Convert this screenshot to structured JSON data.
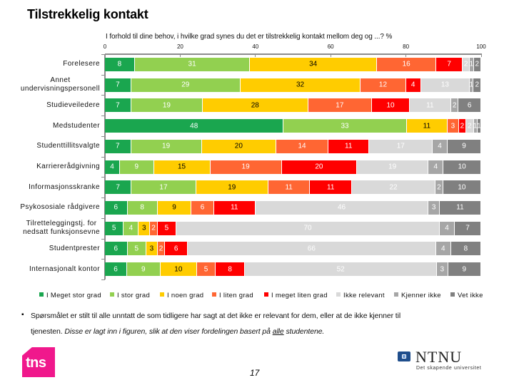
{
  "page": {
    "title": "Tilstrekkelig kontakt",
    "page_number": "17"
  },
  "footnote": {
    "bullet": "▪",
    "line1": "Spørsmålet er stilt til alle unntatt de som tidligere har sagt at det ikke er relevant for dem, eller at de ikke kjenner til",
    "line2_plain": "tjenesten. ",
    "line2_italic": "Disse er lagt inn i figuren, slik at den viser fordelingen basert på ",
    "line2_underlined": "alle",
    "line2_end": " studentene."
  },
  "logos": {
    "tns_text": "tns",
    "ntnu_name": "NTNU",
    "ntnu_tagline": "Det skapende universitet"
  },
  "chart_data": {
    "type": "bar",
    "orientation": "horizontal",
    "stacked": true,
    "title": "Tilstrekkelig kontakt",
    "subtitle": "I forhold til dine behov, i hvilke grad synes du det er tilstrekkelig kontakt mellom deg og ...? %",
    "xlabel": "",
    "ylabel": "",
    "xlim": [
      0,
      100
    ],
    "x_ticks": [
      "0",
      "20",
      "40",
      "60",
      "80",
      "100"
    ],
    "grid": false,
    "legend_position": "bottom",
    "categories": [
      "Forelesere",
      "Annet\nundervisningspersonell",
      "Studieveiledere",
      "Medstudenter",
      "Studenttillitsvalgte",
      "Karriererådgivning",
      "Informasjonsskranke",
      "Psykososiale rådgivere",
      "Tilretteleggingstj. for\nnedsatt funksjonsevne",
      "Studentprester",
      "Internasjonalt kontor"
    ],
    "series": [
      {
        "name": "I Meget stor grad",
        "color": "#1aa64f",
        "label_color": "#ffffff",
        "values": [
          8,
          7,
          7,
          48,
          7,
          4,
          7,
          6,
          5,
          6,
          6
        ]
      },
      {
        "name": "I stor grad",
        "color": "#92d050",
        "label_color": "#ffffff",
        "values": [
          31,
          29,
          19,
          33,
          19,
          9,
          17,
          8,
          4,
          5,
          9
        ]
      },
      {
        "name": "I noen grad",
        "color": "#ffcc00",
        "label_color": "#000000",
        "values": [
          34,
          32,
          28,
          11,
          20,
          15,
          19,
          9,
          3,
          3,
          10
        ]
      },
      {
        "name": "I liten grad",
        "color": "#ff6633",
        "label_color": "#ffffff",
        "values": [
          16,
          12,
          17,
          3,
          14,
          19,
          11,
          6,
          2,
          2,
          5
        ]
      },
      {
        "name": "I meget liten grad",
        "color": "#ff0000",
        "label_color": "#ffffff",
        "values": [
          7,
          4,
          10,
          2,
          11,
          20,
          11,
          11,
          5,
          6,
          8
        ]
      },
      {
        "name": "Ikke relevant",
        "color": "#d9d9d9",
        "label_color": "#ffffff",
        "values": [
          2,
          13,
          11,
          2,
          17,
          19,
          22,
          46,
          70,
          66,
          52
        ]
      },
      {
        "name": "Kjenner ikke",
        "color": "#a6a6a6",
        "label_color": "#ffffff",
        "values": [
          1,
          1,
          2,
          1,
          4,
          4,
          2,
          3,
          4,
          4,
          3
        ]
      },
      {
        "name": "Vet ikke",
        "color": "#808080",
        "label_color": "#ffffff",
        "values": [
          2,
          2,
          6,
          1,
          9,
          10,
          10,
          11,
          7,
          8,
          9
        ]
      }
    ]
  }
}
